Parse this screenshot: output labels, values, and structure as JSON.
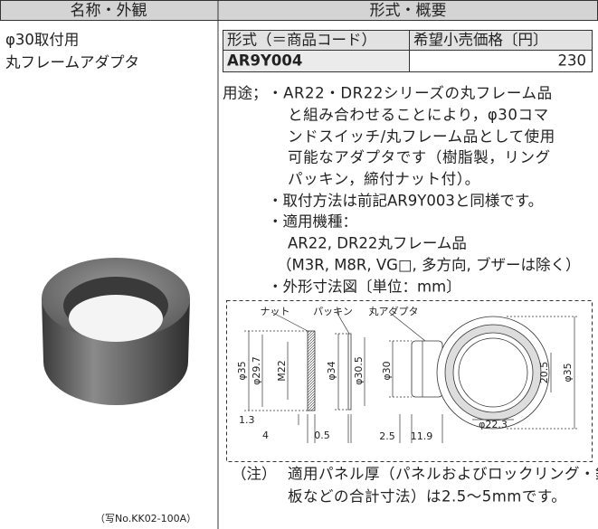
{
  "header": {
    "col1": "名称・外観",
    "col2": "形式・概要"
  },
  "product": {
    "name_lines": [
      "φ30取付用",
      "丸フレームアダプタ"
    ],
    "photo_caption": "（写No.KK02-100A）"
  },
  "price_table": {
    "headers": [
      "形式（＝商品コード）",
      "希望小売価格〔円〕"
    ],
    "rows": [
      [
        "AR9Y004",
        "230"
      ]
    ]
  },
  "description": {
    "label": "用途；",
    "lines": [
      "・AR22・DR22シリーズの丸フレーム品",
      "と組み合わせることにより，φ30コマ",
      "ンドスイッチ/丸フレーム品として使用",
      "可能なアダプタです（樹脂製，リング",
      "パッキン，締付ナット付）。",
      "・取付方法は前記AR9Y003と同様です。",
      "・適用機種：",
      "AR22, DR22丸フレーム品",
      "（M3R, M8R, VG□, 多方向, ブザーは除く）",
      "・外形寸法図〔単位：mm〕"
    ]
  },
  "diagram": {
    "parts": [
      "ナット",
      "パッキン",
      "丸アダプタ"
    ],
    "dimensions": [
      "φ35",
      "φ29.7",
      "M22",
      "φ34",
      "φ30.5",
      "φ30",
      "20.5",
      "φ35",
      "φ22.3",
      "1.3",
      "4",
      "0.5",
      "2.5",
      "11.9"
    ]
  },
  "note": {
    "label": "（注）",
    "lines": [
      "適用パネル厚（パネルおよびロックリング・銘",
      "板などの合計寸法）は2.5〜5mmです。"
    ]
  }
}
